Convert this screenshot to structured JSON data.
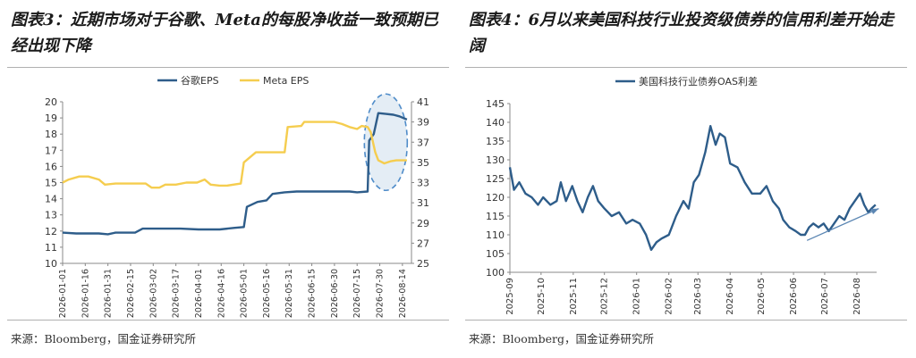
{
  "panels": [
    {
      "title": "图表3：近期市场对于谷歌、Meta的每股净收益一致预期已经出现下降",
      "source": "来源：Bloomberg，国金证券研究所"
    },
    {
      "title": "图表4：6月以来美国科技行业投资级债券的信用利差开始走阔",
      "source": "来源：Bloomberg，国金证券研究所"
    }
  ],
  "chart_data": [
    {
      "type": "line",
      "x_type": "date",
      "x_ticks": [
        "2026-01-01",
        "2026-01-16",
        "2026-01-31",
        "2026-02-15",
        "2026-03-02",
        "2026-03-17",
        "2026-04-01",
        "2026-04-16",
        "2026-05-01",
        "2026-05-16",
        "2026-05-31",
        "2026-06-15",
        "2026-06-30",
        "2026-07-15",
        "2026-07-30",
        "2026-08-14"
      ],
      "x_range": [
        "2026-01-01",
        "2026-08-20"
      ],
      "ylim": [
        10,
        20
      ],
      "yticks": [
        10,
        11,
        12,
        13,
        14,
        15,
        16,
        17,
        18,
        19,
        20
      ],
      "y2lim": [
        25,
        41
      ],
      "y2ticks": [
        25,
        27,
        29,
        31,
        33,
        35,
        37,
        39,
        41
      ],
      "legend_position": "top-center",
      "grid": false,
      "series": [
        {
          "name": "谷歌EPS",
          "axis": "left",
          "color": "#2e5d8a",
          "points": [
            [
              "2026-01-01",
              11.9
            ],
            [
              "2026-01-10",
              11.85
            ],
            [
              "2026-01-25",
              11.85
            ],
            [
              "2026-01-31",
              11.8
            ],
            [
              "2026-02-05",
              11.9
            ],
            [
              "2026-02-18",
              11.9
            ],
            [
              "2026-02-23",
              12.15
            ],
            [
              "2026-03-02",
              12.15
            ],
            [
              "2026-03-10",
              12.15
            ],
            [
              "2026-03-20",
              12.15
            ],
            [
              "2026-04-01",
              12.1
            ],
            [
              "2026-04-15",
              12.1
            ],
            [
              "2026-04-25",
              12.2
            ],
            [
              "2026-05-01",
              12.25
            ],
            [
              "2026-05-03",
              13.5
            ],
            [
              "2026-05-10",
              13.8
            ],
            [
              "2026-05-16",
              13.9
            ],
            [
              "2026-05-20",
              14.3
            ],
            [
              "2026-05-28",
              14.4
            ],
            [
              "2026-06-05",
              14.45
            ],
            [
              "2026-06-15",
              14.45
            ],
            [
              "2026-06-30",
              14.45
            ],
            [
              "2026-07-10",
              14.45
            ],
            [
              "2026-07-15",
              14.4
            ],
            [
              "2026-07-22",
              14.45
            ],
            [
              "2026-07-23",
              17.6
            ],
            [
              "2026-07-26",
              18.0
            ],
            [
              "2026-07-29",
              19.3
            ],
            [
              "2026-08-03",
              19.25
            ],
            [
              "2026-08-08",
              19.2
            ],
            [
              "2026-08-12",
              19.1
            ],
            [
              "2026-08-17",
              18.9
            ]
          ]
        },
        {
          "name": "Meta EPS",
          "axis": "right",
          "color": "#f5cd4f",
          "points": [
            [
              "2026-01-01",
              33.0
            ],
            [
              "2026-01-05",
              33.3
            ],
            [
              "2026-01-12",
              33.6
            ],
            [
              "2026-01-18",
              33.6
            ],
            [
              "2026-01-25",
              33.3
            ],
            [
              "2026-01-29",
              32.8
            ],
            [
              "2026-02-05",
              32.9
            ],
            [
              "2026-02-15",
              32.9
            ],
            [
              "2026-02-25",
              32.9
            ],
            [
              "2026-03-01",
              32.5
            ],
            [
              "2026-03-06",
              32.5
            ],
            [
              "2026-03-10",
              32.8
            ],
            [
              "2026-03-17",
              32.8
            ],
            [
              "2026-03-24",
              33.0
            ],
            [
              "2026-03-31",
              33.0
            ],
            [
              "2026-04-05",
              33.3
            ],
            [
              "2026-04-09",
              32.8
            ],
            [
              "2026-04-15",
              32.7
            ],
            [
              "2026-04-20",
              32.7
            ],
            [
              "2026-04-29",
              32.9
            ],
            [
              "2026-05-01",
              35.0
            ],
            [
              "2026-05-05",
              35.5
            ],
            [
              "2026-05-09",
              36.0
            ],
            [
              "2026-05-20",
              36.0
            ],
            [
              "2026-05-28",
              36.0
            ],
            [
              "2026-05-30",
              38.5
            ],
            [
              "2026-06-08",
              38.6
            ],
            [
              "2026-06-10",
              39.0
            ],
            [
              "2026-06-20",
              39.0
            ],
            [
              "2026-06-30",
              39.0
            ],
            [
              "2026-07-05",
              38.8
            ],
            [
              "2026-07-10",
              38.5
            ],
            [
              "2026-07-15",
              38.3
            ],
            [
              "2026-07-18",
              38.6
            ],
            [
              "2026-07-22",
              38.5
            ],
            [
              "2026-07-24",
              38.0
            ],
            [
              "2026-07-27",
              36.0
            ],
            [
              "2026-07-29",
              35.2
            ],
            [
              "2026-08-02",
              34.9
            ],
            [
              "2026-08-06",
              35.1
            ],
            [
              "2026-08-10",
              35.2
            ],
            [
              "2026-08-17",
              35.2
            ]
          ]
        }
      ],
      "annotation": "dashed ellipse around late-July EPS jump"
    },
    {
      "type": "line",
      "x_type": "date",
      "x_ticks": [
        "2025-09",
        "2025-10",
        "2025-11",
        "2025-12",
        "2026-01",
        "2026-02",
        "2026-03",
        "2026-04",
        "2026-05",
        "2026-06",
        "2026-07",
        "2026-08"
      ],
      "x_range": [
        "2025-09-01",
        "2026-08-20"
      ],
      "ylim": [
        100,
        145
      ],
      "yticks": [
        100,
        105,
        110,
        115,
        120,
        125,
        130,
        135,
        140,
        145
      ],
      "legend_position": "top-left",
      "grid": false,
      "series": [
        {
          "name": "美国科技行业债券OAS利差",
          "color": "#2e5d8a",
          "points": [
            [
              "2025-09-01",
              128
            ],
            [
              "2025-09-05",
              122
            ],
            [
              "2025-09-10",
              124
            ],
            [
              "2025-09-16",
              121
            ],
            [
              "2025-09-22",
              120
            ],
            [
              "2025-09-28",
              118
            ],
            [
              "2025-10-03",
              120
            ],
            [
              "2025-10-10",
              118
            ],
            [
              "2025-10-16",
              119
            ],
            [
              "2025-10-20",
              124
            ],
            [
              "2025-10-25",
              119
            ],
            [
              "2025-10-31",
              123
            ],
            [
              "2025-11-05",
              119
            ],
            [
              "2025-11-10",
              116
            ],
            [
              "2025-11-15",
              120
            ],
            [
              "2025-11-20",
              123
            ],
            [
              "2025-11-25",
              119
            ],
            [
              "2025-12-01",
              117
            ],
            [
              "2025-12-08",
              115
            ],
            [
              "2025-12-15",
              116
            ],
            [
              "2025-12-22",
              113
            ],
            [
              "2025-12-28",
              114
            ],
            [
              "2026-01-04",
              113
            ],
            [
              "2026-01-10",
              110
            ],
            [
              "2026-01-15",
              106
            ],
            [
              "2026-01-20",
              108
            ],
            [
              "2026-01-25",
              109
            ],
            [
              "2026-02-01",
              110
            ],
            [
              "2026-02-08",
              115
            ],
            [
              "2026-02-15",
              119
            ],
            [
              "2026-02-20",
              117
            ],
            [
              "2026-02-25",
              124
            ],
            [
              "2026-03-02",
              126
            ],
            [
              "2026-03-08",
              132
            ],
            [
              "2026-03-13",
              139
            ],
            [
              "2026-03-18",
              134
            ],
            [
              "2026-03-22",
              137
            ],
            [
              "2026-03-27",
              136
            ],
            [
              "2026-04-01",
              129
            ],
            [
              "2026-04-08",
              128
            ],
            [
              "2026-04-15",
              124
            ],
            [
              "2026-04-22",
              121
            ],
            [
              "2026-04-30",
              121
            ],
            [
              "2026-05-06",
              123
            ],
            [
              "2026-05-12",
              119
            ],
            [
              "2026-05-18",
              117
            ],
            [
              "2026-05-22",
              114
            ],
            [
              "2026-05-28",
              112
            ],
            [
              "2026-06-03",
              111
            ],
            [
              "2026-06-08",
              110
            ],
            [
              "2026-06-12",
              110
            ],
            [
              "2026-06-16",
              112
            ],
            [
              "2026-06-20",
              113
            ],
            [
              "2026-06-25",
              112
            ],
            [
              "2026-06-30",
              113
            ],
            [
              "2026-07-05",
              111
            ],
            [
              "2026-07-10",
              113
            ],
            [
              "2026-07-15",
              115
            ],
            [
              "2026-07-20",
              114
            ],
            [
              "2026-07-25",
              117
            ],
            [
              "2026-07-30",
              119
            ],
            [
              "2026-08-04",
              121
            ],
            [
              "2026-08-08",
              118
            ],
            [
              "2026-08-12",
              116
            ],
            [
              "2026-08-15",
              117
            ],
            [
              "2026-08-19",
              118
            ]
          ]
        }
      ],
      "annotation": "upward trend arrow from June to August"
    }
  ]
}
